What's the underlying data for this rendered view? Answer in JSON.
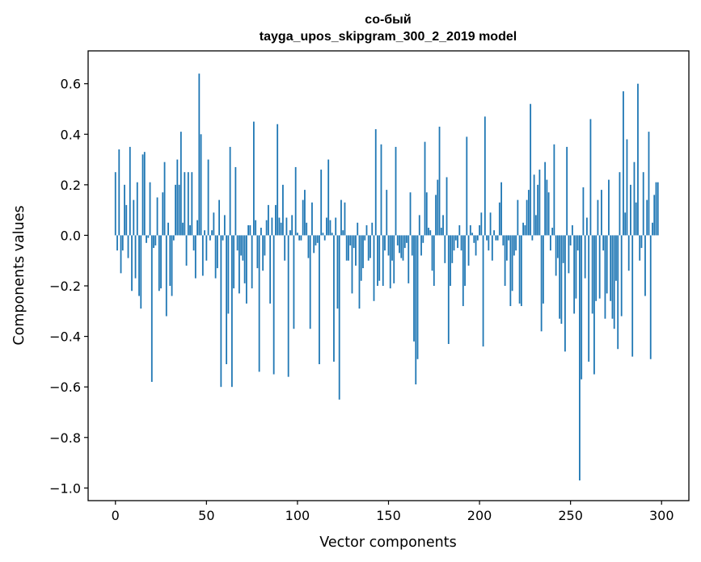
{
  "chart_data": {
    "type": "bar",
    "title": "со-бый",
    "subtitle": "tayga_upos_skipgram_300_2_2019 model",
    "xlabel": "Vector components",
    "ylabel": "Components values",
    "xlim": [
      -15,
      315
    ],
    "ylim": [
      -1.05,
      0.73
    ],
    "xticks": [
      0,
      50,
      100,
      150,
      200,
      250,
      300
    ],
    "xtick_labels": [
      "0",
      "50",
      "100",
      "150",
      "200",
      "250",
      "300"
    ],
    "yticks": [
      -1.0,
      -0.8,
      -0.6,
      -0.4,
      -0.2,
      0.0,
      0.2,
      0.4,
      0.6
    ],
    "ytick_labels": [
      "−1.0",
      "−0.8",
      "−0.6",
      "−0.4",
      "−0.2",
      "0.0",
      "0.2",
      "0.4",
      "0.6"
    ],
    "bar_color": "#1f77b4",
    "grid": false,
    "values": [
      0.25,
      -0.06,
      0.34,
      -0.15,
      -0.06,
      0.2,
      0.12,
      -0.09,
      0.35,
      -0.22,
      0.14,
      -0.17,
      0.21,
      -0.24,
      -0.29,
      0.32,
      0.33,
      -0.03,
      -0.01,
      0.21,
      -0.58,
      -0.05,
      -0.04,
      0.15,
      -0.22,
      -0.21,
      0.17,
      0.29,
      -0.32,
      0.05,
      -0.2,
      -0.24,
      -0.02,
      0.2,
      0.3,
      0.2,
      0.41,
      0.05,
      0.25,
      -0.12,
      0.25,
      0.04,
      0.25,
      -0.06,
      -0.17,
      0.06,
      0.64,
      0.4,
      -0.16,
      0.02,
      -0.1,
      0.3,
      -0.02,
      0.02,
      0.09,
      -0.17,
      -0.13,
      0.14,
      -0.6,
      -0.02,
      0.08,
      -0.51,
      -0.31,
      0.35,
      -0.6,
      -0.21,
      0.27,
      -0.06,
      -0.23,
      -0.08,
      -0.1,
      -0.19,
      -0.27,
      0.04,
      0.04,
      -0.21,
      0.45,
      0.06,
      -0.13,
      -0.54,
      0.03,
      -0.14,
      -0.08,
      0.06,
      0.12,
      -0.27,
      0.07,
      -0.55,
      0.12,
      0.44,
      0.07,
      0.05,
      0.2,
      -0.1,
      0.07,
      -0.56,
      0.02,
      0.08,
      -0.37,
      0.27,
      0.01,
      -0.02,
      -0.02,
      0.14,
      0.18,
      0.05,
      -0.09,
      -0.37,
      0.13,
      -0.07,
      -0.04,
      -0.03,
      -0.51,
      0.26,
      0.01,
      -0.02,
      0.07,
      0.3,
      0.06,
      0.01,
      -0.5,
      0.07,
      -0.29,
      -0.65,
      0.14,
      0.02,
      0.13,
      -0.1,
      -0.1,
      -0.04,
      -0.23,
      -0.05,
      -0.12,
      0.05,
      -0.29,
      -0.18,
      -0.13,
      -0.02,
      0.04,
      -0.1,
      -0.09,
      0.05,
      -0.26,
      0.42,
      -0.2,
      -0.18,
      0.36,
      -0.2,
      -0.06,
      0.18,
      -0.08,
      -0.21,
      -0.1,
      -0.19,
      0.35,
      -0.04,
      -0.07,
      -0.09,
      -0.1,
      -0.05,
      -0.03,
      -0.19,
      0.17,
      -0.08,
      -0.42,
      -0.59,
      -0.49,
      0.08,
      -0.08,
      -0.03,
      0.37,
      0.17,
      0.03,
      0.02,
      -0.14,
      -0.2,
      0.16,
      0.22,
      0.43,
      0.03,
      0.08,
      -0.11,
      0.23,
      -0.43,
      -0.2,
      -0.11,
      -0.06,
      -0.02,
      -0.05,
      0.04,
      -0.06,
      -0.28,
      -0.2,
      0.39,
      -0.12,
      0.04,
      0.01,
      -0.03,
      -0.08,
      -0.02,
      0.04,
      0.09,
      -0.44,
      0.47,
      -0.02,
      -0.06,
      0.09,
      -0.1,
      0.02,
      -0.02,
      -0.02,
      0.13,
      0.21,
      -0.04,
      -0.2,
      -0.1,
      -0.02,
      -0.28,
      -0.22,
      -0.08,
      -0.06,
      0.14,
      -0.27,
      -0.28,
      0.05,
      0.04,
      0.14,
      0.18,
      0.52,
      -0.02,
      0.24,
      0.08,
      0.2,
      0.26,
      -0.38,
      -0.27,
      0.29,
      0.22,
      0.17,
      -0.06,
      0.03,
      0.36,
      -0.16,
      -0.09,
      -0.33,
      -0.35,
      -0.11,
      -0.46,
      0.35,
      -0.15,
      -0.04,
      0.04,
      -0.31,
      -0.25,
      -0.06,
      -0.97,
      -0.57,
      0.19,
      -0.17,
      0.07,
      -0.5,
      0.46,
      -0.31,
      -0.55,
      -0.26,
      0.14,
      -0.25,
      0.18,
      -0.06,
      -0.33,
      -0.23,
      0.22,
      -0.26,
      -0.33,
      -0.37,
      -0.18,
      -0.45,
      0.25,
      -0.32,
      0.57,
      0.09,
      0.38,
      -0.14,
      0.2,
      -0.48,
      0.29,
      0.13,
      0.6,
      -0.1,
      -0.05,
      0.25,
      -0.24,
      0.14,
      0.41,
      -0.49,
      0.05,
      0.16,
      0.21,
      0.21
    ]
  }
}
